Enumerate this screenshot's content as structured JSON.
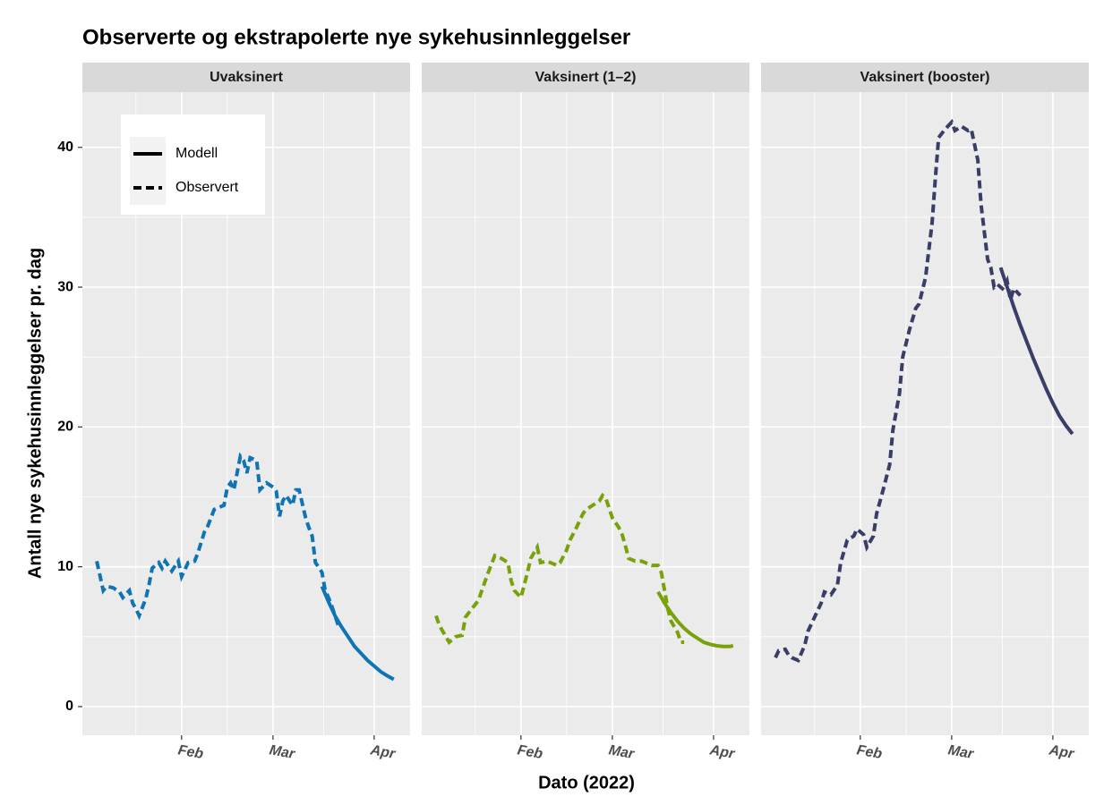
{
  "chart_data": {
    "type": "line",
    "title": "Observerte og ekstrapolerte nye sykehusinnleggelser",
    "x_label": "Dato (2022)",
    "y_label": "Antall nye sykehusinnleggelser pr. dag",
    "xlim": [
      0.6,
      101
    ],
    "xticks": [
      {
        "value": 31,
        "label": "Feb"
      },
      {
        "value": 59,
        "label": "Mar"
      },
      {
        "value": 90,
        "label": "Apr"
      }
    ],
    "ylim": [
      -2.05,
      43.95
    ],
    "yticks": [
      0,
      10,
      20,
      30,
      40
    ],
    "grid": true,
    "legend": "top-left",
    "panels": [
      {
        "title": "Uvaksinert",
        "series": [
          {
            "name": "Modell",
            "color": "#0f74b3",
            "line": "solid",
            "x": [
              74,
              76,
              78,
              80,
              82,
              84,
              86,
              88,
              90,
              92,
              94,
              96
            ],
            "values": [
              8.6,
              7.5,
              6.5,
              5.7,
              5.0,
              4.3,
              3.8,
              3.3,
              2.9,
              2.5,
              2.2,
              1.95
            ]
          },
          {
            "name": "Observert",
            "color": "#0f74b3",
            "line": "dashed",
            "x": [
              5,
              7,
              8,
              10,
              12,
              13,
              15,
              16,
              17,
              18,
              20,
              21,
              22,
              24,
              25,
              26,
              28,
              30,
              31,
              33,
              35,
              36,
              38,
              39,
              41,
              42,
              44,
              45,
              46,
              47,
              49,
              50,
              51,
              52,
              54,
              55,
              57,
              59,
              60,
              61,
              62,
              63,
              65,
              66,
              67,
              69,
              70,
              71,
              72,
              74,
              75,
              76,
              77,
              79
            ],
            "values": [
              10.4,
              8.3,
              8.6,
              8.5,
              8.2,
              7.8,
              8.3,
              7.4,
              7.0,
              6.5,
              7.7,
              8.7,
              9.9,
              10.3,
              9.9,
              10.4,
              9.7,
              10.4,
              9.3,
              10.3,
              10.4,
              11.0,
              12.5,
              12.9,
              14.1,
              14.2,
              14.4,
              15.7,
              16.0,
              15.5,
              17.9,
              17.6,
              16.7,
              17.8,
              17.6,
              15.5,
              16.0,
              15.7,
              15.4,
              13.6,
              14.7,
              15.1,
              14.4,
              15.5,
              15.5,
              13.5,
              12.8,
              12.2,
              10.3,
              9.6,
              8.3,
              7.8,
              7.2,
              5.8
            ]
          }
        ]
      },
      {
        "title": "Vaksinert (1–2)",
        "series": [
          {
            "name": "Modell",
            "color": "#79a10a",
            "line": "solid",
            "x": [
              73,
              75,
              77,
              79,
              81,
              83,
              85,
              87,
              89,
              91,
              93,
              95,
              96
            ],
            "values": [
              8.2,
              7.4,
              6.7,
              6.1,
              5.6,
              5.2,
              4.9,
              4.6,
              4.45,
              4.35,
              4.3,
              4.3,
              4.35
            ]
          },
          {
            "name": "Observert",
            "color": "#79a10a",
            "line": "dashed",
            "x": [
              5,
              6,
              8,
              9,
              11,
              13,
              14,
              16,
              18,
              19,
              21,
              23,
              25,
              27,
              28,
              29,
              31,
              33,
              34,
              36,
              37,
              39,
              40,
              42,
              43,
              45,
              46,
              48,
              50,
              51,
              53,
              55,
              56,
              57,
              59,
              61,
              62,
              63,
              64,
              66,
              68,
              69,
              71,
              73,
              74,
              75,
              76,
              77,
              79,
              80,
              81
            ],
            "values": [
              6.5,
              5.8,
              5.0,
              4.6,
              5.0,
              5.1,
              6.4,
              7.0,
              7.6,
              8.3,
              9.6,
              10.8,
              10.6,
              10.3,
              9.0,
              8.3,
              7.8,
              9.6,
              10.6,
              11.4,
              10.3,
              10.4,
              10.3,
              10.1,
              10.3,
              11.2,
              11.9,
              12.8,
              13.8,
              14.1,
              14.4,
              14.7,
              15.1,
              14.9,
              13.5,
              12.8,
              12.3,
              11.5,
              10.6,
              10.4,
              10.4,
              10.3,
              10.1,
              10.1,
              9.6,
              8.3,
              7.0,
              6.1,
              5.3,
              4.6,
              4.6
            ]
          }
        ]
      },
      {
        "title": "Vaksinert (booster)",
        "series": [
          {
            "name": "Modell",
            "color": "#3a3d66",
            "line": "solid",
            "x": [
              74,
              76,
              78,
              80,
              82,
              84,
              86,
              88,
              90,
              92,
              94,
              96
            ],
            "values": [
              31.4,
              30.0,
              28.6,
              27.3,
              26.1,
              24.9,
              23.8,
              22.7,
              21.7,
              20.8,
              20.1,
              19.5
            ]
          },
          {
            "name": "Observert",
            "color": "#3a3d66",
            "line": "dashed",
            "x": [
              5,
              6,
              8,
              9,
              10,
              12,
              14,
              15,
              17,
              19,
              20,
              22,
              24,
              25,
              27,
              29,
              30,
              32,
              33,
              35,
              36,
              38,
              40,
              41,
              43,
              44,
              46,
              48,
              49,
              51,
              53,
              54,
              55,
              57,
              59,
              60,
              62,
              64,
              65,
              67,
              68,
              70,
              71,
              72,
              73,
              75,
              76,
              77,
              78,
              80
            ],
            "values": [
              3.5,
              4.0,
              4.1,
              3.7,
              3.5,
              3.3,
              4.4,
              5.4,
              6.4,
              7.4,
              8.2,
              8.0,
              8.7,
              10.3,
              11.9,
              12.2,
              12.7,
              12.3,
              11.4,
              12.2,
              13.8,
              15.5,
              17.3,
              19.8,
              22.4,
              25.0,
              26.9,
              28.5,
              28.8,
              30.7,
              34.6,
              37.8,
              40.7,
              41.3,
              41.8,
              41.2,
              41.5,
              41.2,
              41.3,
              39.1,
              35.9,
              32.0,
              31.4,
              30.0,
              30.2,
              29.8,
              30.4,
              29.1,
              29.9,
              29.4
            ]
          }
        ]
      }
    ]
  }
}
